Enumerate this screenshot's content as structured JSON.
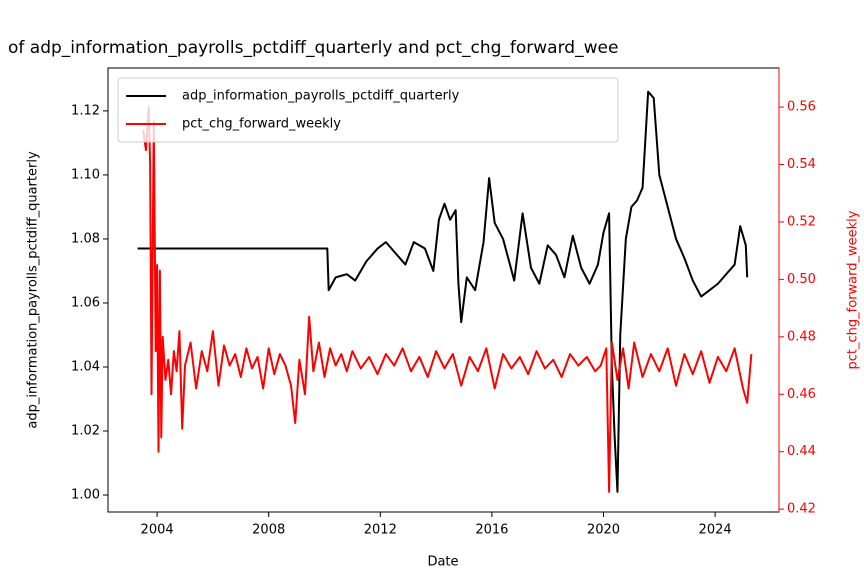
{
  "chart_data": {
    "type": "line",
    "title": "of adp_information_payrolls_pctdiff_quarterly and pct_chg_forward_wee",
    "x_label": "Date",
    "y_label": "adp_information_payrolls_pctdiff_quarterly",
    "y2_label": "pct_chg_forward_weekly",
    "xlim": [
      2002.24,
      2026.29
    ],
    "xticks": [
      2004,
      2008,
      2012,
      2016,
      2020,
      2024
    ],
    "ylim": [
      0.9947,
      1.1334
    ],
    "yticks": [
      {
        "value": 1.0,
        "label": "1.00"
      },
      1.02,
      1.04,
      1.06,
      1.08,
      {
        "value": 1.1,
        "label": "1.10"
      },
      1.12
    ],
    "y2lim": [
      0.419,
      0.5736
    ],
    "y2ticks": [
      0.42,
      0.44,
      0.46,
      0.48,
      {
        "value": 0.5,
        "label": "0.50"
      },
      0.52,
      0.54,
      0.56
    ],
    "legend": "upper left",
    "series": [
      {
        "name": "adp_information_payrolls_pctdiff_quarterly",
        "color": "#000000",
        "x": [
          2003.3,
          2010.1,
          2010.15,
          2010.4,
          2010.8,
          2011.1,
          2011.5,
          2011.9,
          2012.2,
          2012.5,
          2012.9,
          2013.2,
          2013.6,
          2013.9,
          2014.1,
          2014.3,
          2014.5,
          2014.7,
          2014.8,
          2014.9,
          2015.1,
          2015.4,
          2015.7,
          2015.9,
          2016.1,
          2016.4,
          2016.8,
          2017.1,
          2017.4,
          2017.7,
          2018.0,
          2018.3,
          2018.6,
          2018.9,
          2019.2,
          2019.5,
          2019.8,
          2020.0,
          2020.2,
          2020.3,
          2020.4,
          2020.5,
          2020.6,
          2020.8,
          2021.0,
          2021.2,
          2021.4,
          2021.6,
          2021.8,
          2022.0,
          2022.3,
          2022.6,
          2022.9,
          2023.2,
          2023.5,
          2023.8,
          2024.1,
          2024.4,
          2024.7,
          2024.9,
          2025.1,
          2025.15
        ],
        "values": [
          1.077,
          1.077,
          1.064,
          1.068,
          1.069,
          1.067,
          1.073,
          1.077,
          1.079,
          1.076,
          1.072,
          1.079,
          1.077,
          1.07,
          1.086,
          1.091,
          1.086,
          1.089,
          1.066,
          1.054,
          1.068,
          1.064,
          1.079,
          1.099,
          1.085,
          1.08,
          1.067,
          1.088,
          1.071,
          1.066,
          1.078,
          1.075,
          1.068,
          1.081,
          1.071,
          1.066,
          1.072,
          1.082,
          1.088,
          1.04,
          1.018,
          1.001,
          1.05,
          1.08,
          1.09,
          1.092,
          1.096,
          1.126,
          1.124,
          1.1,
          1.09,
          1.08,
          1.074,
          1.067,
          1.062,
          1.064,
          1.066,
          1.069,
          1.072,
          1.084,
          1.078,
          1.068
        ]
      },
      {
        "name": "pct_chg_forward_weekly",
        "color": "#ff0000",
        "axis": "y2",
        "x": [
          2003.5,
          2003.6,
          2003.7,
          2003.75,
          2003.8,
          2003.88,
          2003.95,
          2004.0,
          2004.05,
          2004.1,
          2004.15,
          2004.2,
          2004.3,
          2004.4,
          2004.5,
          2004.6,
          2004.7,
          2004.8,
          2004.9,
          2005.0,
          2005.2,
          2005.4,
          2005.6,
          2005.8,
          2006.0,
          2006.2,
          2006.4,
          2006.6,
          2006.8,
          2007.0,
          2007.2,
          2007.4,
          2007.6,
          2007.8,
          2008.0,
          2008.2,
          2008.4,
          2008.6,
          2008.8,
          2008.95,
          2009.1,
          2009.3,
          2009.45,
          2009.6,
          2009.8,
          2010.0,
          2010.2,
          2010.4,
          2010.6,
          2010.8,
          2011.0,
          2011.3,
          2011.6,
          2011.9,
          2012.2,
          2012.5,
          2012.8,
          2013.1,
          2013.4,
          2013.7,
          2014.0,
          2014.3,
          2014.6,
          2014.9,
          2015.2,
          2015.5,
          2015.8,
          2016.1,
          2016.4,
          2016.7,
          2017.0,
          2017.3,
          2017.6,
          2017.9,
          2018.2,
          2018.5,
          2018.8,
          2019.1,
          2019.4,
          2019.7,
          2019.9,
          2020.1,
          2020.2,
          2020.3,
          2020.5,
          2020.7,
          2020.9,
          2021.1,
          2021.4,
          2021.7,
          2022.0,
          2022.3,
          2022.6,
          2022.9,
          2023.2,
          2023.5,
          2023.8,
          2024.1,
          2024.4,
          2024.7,
          2025.0,
          2025.15,
          2025.3
        ],
        "values": [
          0.552,
          0.545,
          0.56,
          0.54,
          0.46,
          0.555,
          0.475,
          0.505,
          0.44,
          0.503,
          0.445,
          0.48,
          0.465,
          0.472,
          0.46,
          0.475,
          0.468,
          0.482,
          0.448,
          0.47,
          0.478,
          0.462,
          0.475,
          0.468,
          0.482,
          0.463,
          0.477,
          0.47,
          0.474,
          0.466,
          0.476,
          0.469,
          0.473,
          0.462,
          0.476,
          0.467,
          0.474,
          0.47,
          0.463,
          0.45,
          0.472,
          0.46,
          0.487,
          0.468,
          0.478,
          0.466,
          0.476,
          0.47,
          0.474,
          0.468,
          0.475,
          0.469,
          0.473,
          0.467,
          0.474,
          0.47,
          0.476,
          0.468,
          0.473,
          0.466,
          0.475,
          0.469,
          0.474,
          0.463,
          0.473,
          0.468,
          0.476,
          0.462,
          0.474,
          0.469,
          0.473,
          0.467,
          0.475,
          0.469,
          0.472,
          0.466,
          0.474,
          0.47,
          0.473,
          0.468,
          0.47,
          0.476,
          0.426,
          0.478,
          0.465,
          0.476,
          0.462,
          0.478,
          0.466,
          0.474,
          0.468,
          0.476,
          0.463,
          0.474,
          0.467,
          0.475,
          0.464,
          0.473,
          0.468,
          0.476,
          0.462,
          0.457,
          0.474
        ]
      }
    ]
  }
}
